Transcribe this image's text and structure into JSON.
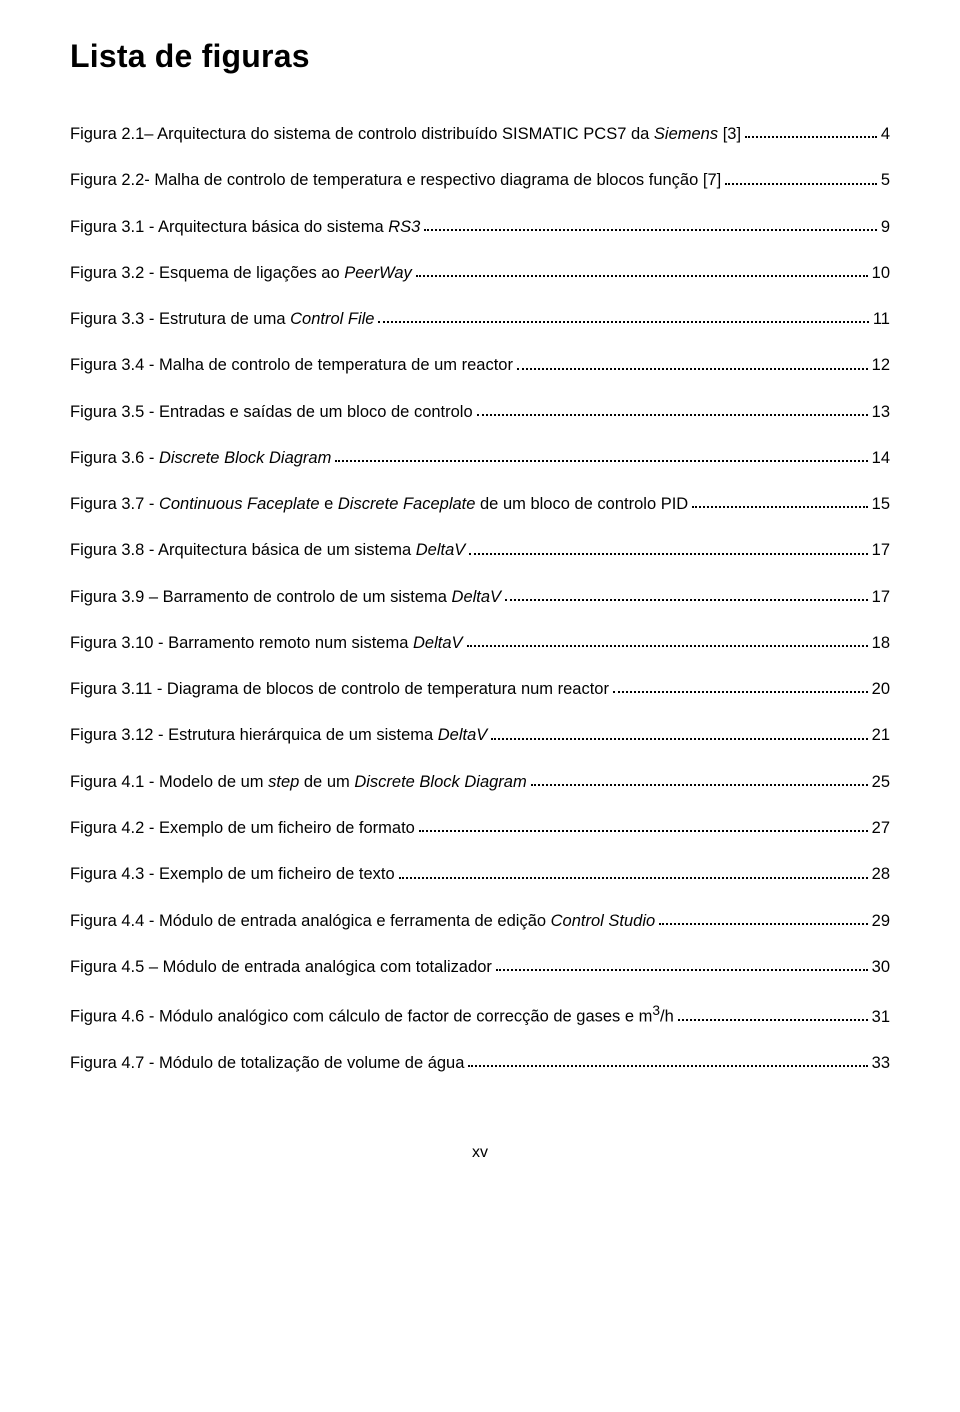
{
  "title": "Lista de figuras",
  "footer": "xv",
  "entries": [
    {
      "label": "Figura 2.1– Arquitectura do sistema de controlo distribuído SISMATIC PCS7 da ",
      "italic": "Siemens",
      "suffix": " [3]",
      "page": "4"
    },
    {
      "label": "Figura 2.2- Malha de controlo de temperatura e respectivo diagrama de blocos função [7]",
      "page": "5"
    },
    {
      "label": "Figura 3.1 - Arquitectura básica do sistema ",
      "italic": "RS3",
      "page": "9"
    },
    {
      "label": "Figura 3.2 - Esquema de ligações ao ",
      "italic": "PeerWay",
      "page": "10"
    },
    {
      "label": "Figura 3.3 - Estrutura de uma ",
      "italic": "Control File",
      "page": "11"
    },
    {
      "label": "Figura 3.4 - Malha de controlo de temperatura de um reactor",
      "page": "12"
    },
    {
      "label": "Figura 3.5 - Entradas e saídas de um bloco de controlo",
      "page": "13"
    },
    {
      "label": "Figura 3.6 - ",
      "italic": "Discrete Block Diagram",
      "page": "14"
    },
    {
      "label": "Figura 3.7 - ",
      "italic": "Continuous Faceplate",
      "mid": " e ",
      "italic2": "Discrete Faceplate",
      "suffix": " de um bloco de controlo PID",
      "page": "15"
    },
    {
      "label": "Figura 3.8 - Arquitectura básica de um sistema ",
      "italic": "DeltaV",
      "page": "17"
    },
    {
      "label": "Figura 3.9 – Barramento de controlo de um sistema ",
      "italic": "DeltaV",
      "page": "17"
    },
    {
      "label": "Figura 3.10 - Barramento remoto num sistema ",
      "italic": "DeltaV",
      "page": "18"
    },
    {
      "label": "Figura 3.11 - Diagrama de blocos de controlo de temperatura num reactor",
      "page": "20"
    },
    {
      "label": "Figura 3.12 - Estrutura hierárquica de um sistema ",
      "italic": "DeltaV",
      "page": "21"
    },
    {
      "label": "Figura 4.1 - Modelo de um ",
      "italic": "step",
      "mid": " de um ",
      "italic2": "Discrete Block Diagram",
      "page": "25"
    },
    {
      "label": "Figura 4.2 - Exemplo de um ficheiro de formato",
      "page": "27"
    },
    {
      "label": "Figura 4.3 - Exemplo de um ficheiro de texto",
      "page": "28"
    },
    {
      "label": "Figura 4.4 - Módulo de entrada analógica e ferramenta de edição ",
      "italic": "Control Studio",
      "page": "29"
    },
    {
      "label": "Figura 4.5 – Módulo de entrada analógica com totalizador",
      "page": "30"
    },
    {
      "label": "Figura 4.6 - Módulo analógico com cálculo de factor de correcção de gases e m",
      "sup": "3",
      "suffix": "/h",
      "page": "31"
    },
    {
      "label": "Figura 4.7 - Módulo de totalização de volume de água",
      "page": "33"
    }
  ]
}
